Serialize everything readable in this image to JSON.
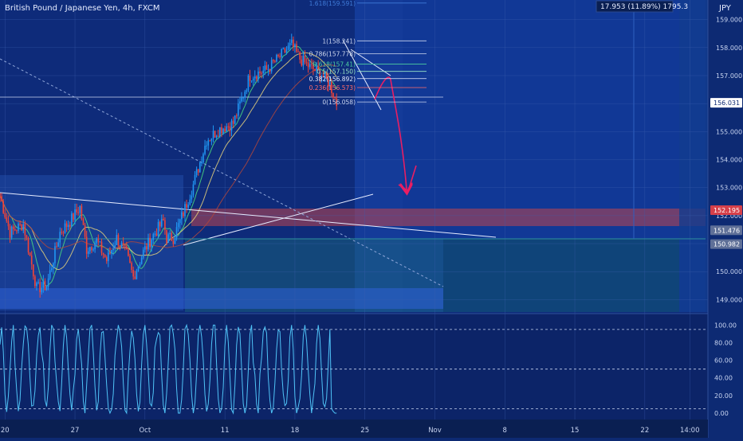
{
  "symbol_title": "British Pound / Japanese Yen, 4h, FXCM",
  "currency": "JPY",
  "measure_label": "17.953 (11.89%) 1795.3",
  "colors": {
    "background": "#0d2a73",
    "up": "#2196f3",
    "down": "#f44336",
    "oscillator": "#4fc3f7",
    "annotation": "#e91e63"
  },
  "chart_data": {
    "type": "candlestick",
    "ylim": [
      148.5,
      159.7
    ],
    "y_ticks": [
      {
        "value": 159.0,
        "label": "159.000"
      },
      {
        "value": 158.0,
        "label": "158.000"
      },
      {
        "value": 157.0,
        "label": "157.000"
      },
      {
        "value": 156.0,
        "label": "156.000"
      },
      {
        "value": 155.0,
        "label": "155.000"
      },
      {
        "value": 154.0,
        "label": "154.000"
      },
      {
        "value": 153.0,
        "label": "153.000"
      },
      {
        "value": 152.0,
        "label": "152.000"
      },
      {
        "value": 151.0,
        "label": "151.000"
      },
      {
        "value": 150.0,
        "label": "150.000"
      },
      {
        "value": 149.0,
        "label": "149.000"
      }
    ],
    "x_ticks": [
      {
        "label": "20",
        "t": 3
      },
      {
        "label": "27",
        "t": 45
      },
      {
        "label": "Oct",
        "t": 87
      },
      {
        "label": "11",
        "t": 135
      },
      {
        "label": "18",
        "t": 177
      },
      {
        "label": "25",
        "t": 219
      },
      {
        "label": "Nov",
        "t": 261
      },
      {
        "label": "8",
        "t": 303
      },
      {
        "label": "15",
        "t": 345
      },
      {
        "label": "22",
        "t": 387
      },
      {
        "label": "14:00",
        "t": 414
      }
    ],
    "price_labels": [
      {
        "value": 156.031,
        "label": "156.031",
        "style": "current"
      },
      {
        "value": 152.195,
        "label": "152.195",
        "style": "red"
      },
      {
        "value": 151.476,
        "label": "151.476",
        "style": "gray"
      },
      {
        "value": 150.982,
        "label": "150.982",
        "style": "gray"
      }
    ],
    "fib_levels": [
      {
        "ratio_label": "1.618(159.591)",
        "value": 159.591
      },
      {
        "ratio_label": "1(158.241)",
        "value": 158.241
      },
      {
        "ratio_label": "0.786(157.778)",
        "value": 157.778
      },
      {
        "ratio_label": "0.618(157.41)",
        "value": 157.41
      },
      {
        "ratio_label": "0.5(157.150)",
        "value": 157.15
      },
      {
        "ratio_label": "0.382(156.892)",
        "value": 156.892
      },
      {
        "ratio_label": "0.236(156.573)",
        "value": 156.573
      },
      {
        "ratio_label": "0(156.058)",
        "value": 156.058
      }
    ],
    "oscillator": {
      "y_ticks": [
        {
          "value": 100,
          "label": "100.00"
        },
        {
          "value": 80,
          "label": "80.00"
        },
        {
          "value": 60,
          "label": "60.00"
        },
        {
          "value": 40,
          "label": "40.00"
        },
        {
          "value": 20,
          "label": "20.00"
        },
        {
          "value": 0,
          "label": "0.00"
        }
      ],
      "bands": [
        95,
        50,
        5
      ]
    },
    "anchors": [
      {
        "t": 0,
        "price": 152.7
      },
      {
        "t": 6,
        "price": 151.4
      },
      {
        "t": 14,
        "price": 151.7
      },
      {
        "t": 22,
        "price": 149.4
      },
      {
        "t": 28,
        "price": 149.5
      },
      {
        "t": 36,
        "price": 151.4
      },
      {
        "t": 42,
        "price": 151.8
      },
      {
        "t": 48,
        "price": 152.3
      },
      {
        "t": 52,
        "price": 150.8
      },
      {
        "t": 58,
        "price": 151.1
      },
      {
        "t": 64,
        "price": 150.4
      },
      {
        "t": 70,
        "price": 151.2
      },
      {
        "t": 76,
        "price": 150.6
      },
      {
        "t": 80,
        "price": 149.8
      },
      {
        "t": 86,
        "price": 150.7
      },
      {
        "t": 92,
        "price": 151.3
      },
      {
        "t": 98,
        "price": 151.8
      },
      {
        "t": 100,
        "price": 151.2
      },
      {
        "t": 104,
        "price": 151.2
      },
      {
        "t": 110,
        "price": 152.1
      },
      {
        "t": 116,
        "price": 153.1
      },
      {
        "t": 124,
        "price": 154.7
      },
      {
        "t": 132,
        "price": 155.1
      },
      {
        "t": 140,
        "price": 155.3
      },
      {
        "t": 150,
        "price": 157.0
      },
      {
        "t": 160,
        "price": 157.2
      },
      {
        "t": 165,
        "price": 157.5
      },
      {
        "t": 170,
        "price": 157.8
      },
      {
        "t": 175,
        "price": 158.1
      },
      {
        "t": 180,
        "price": 157.6
      },
      {
        "t": 186,
        "price": 157.3
      },
      {
        "t": 192,
        "price": 157.1
      },
      {
        "t": 198,
        "price": 156.7
      },
      {
        "t": 202,
        "price": 156.0
      }
    ]
  }
}
